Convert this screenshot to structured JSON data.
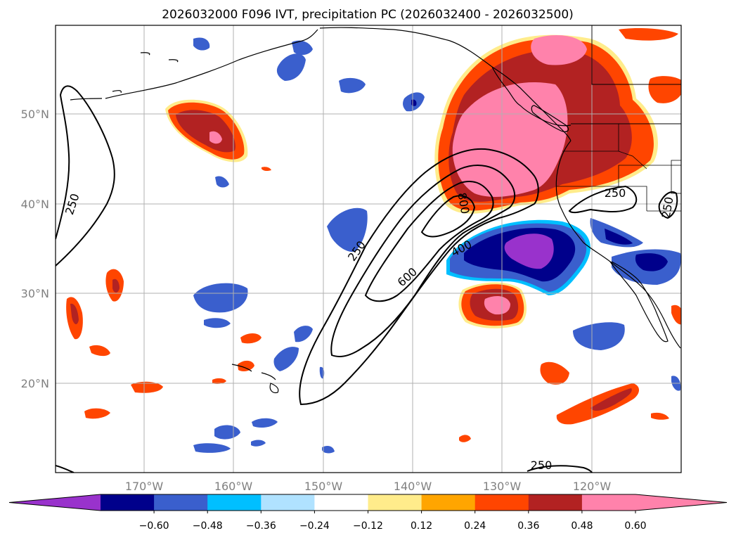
{
  "title": "2026032000 F096 IVT, precipitation PC (2026032400 - 2026032500)",
  "map": {
    "lon_ticks": [
      "170°W",
      "160°W",
      "150°W",
      "140°W",
      "130°W",
      "120°W"
    ],
    "lat_ticks": [
      "50°N",
      "40°N",
      "30°N",
      "20°N"
    ],
    "gridlines": true
  },
  "ivt_contours": {
    "levels": [
      250,
      400,
      600,
      800
    ],
    "labels": [
      "250",
      "250",
      "250",
      "600",
      "400",
      "800",
      "250",
      "250"
    ]
  },
  "colorbar": {
    "tick_labels": [
      "−0.60",
      "−0.48",
      "−0.36",
      "−0.24",
      "−0.12",
      "0.12",
      "0.24",
      "0.36",
      "0.48",
      "0.60"
    ],
    "colors": [
      "#9932cc",
      "#00008b",
      "#3a5fcd",
      "#00bfff",
      "#b0e2ff",
      "#ffffff",
      "#ffec8b",
      "#ffa500",
      "#ff4500",
      "#b22222",
      "#ff82ab",
      "#ff82ab"
    ],
    "extend": "both"
  },
  "colors": {
    "land_line": "#000000",
    "grid": "#b0b0b0",
    "neg_strong": "#9932cc",
    "neg_dark": "#00008b",
    "neg_mid": "#3a5fcd",
    "neg_light": "#00bfff",
    "pos_light": "#ffec8b",
    "pos_mid": "#ffa500",
    "pos_orange": "#ff4500",
    "pos_dark": "#b22222",
    "pos_pink": "#ff82ab"
  }
}
